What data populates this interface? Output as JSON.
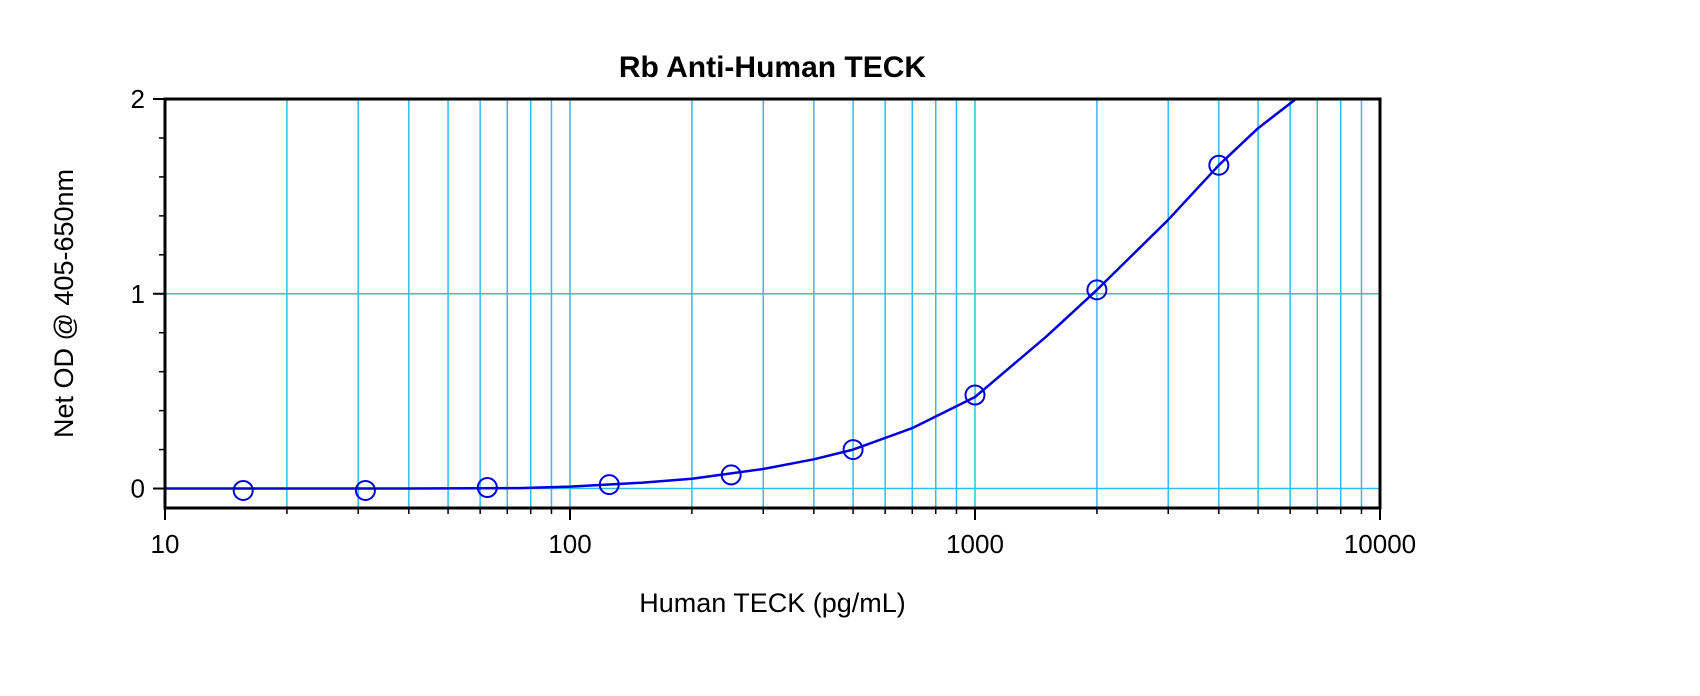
{
  "chart_data": {
    "type": "scatter",
    "title": "Rb Anti-Human TECK",
    "xlabel": "Human TECK (pg/mL)",
    "ylabel": "Net OD @ 405-650nm",
    "x_scale": "log",
    "xlim": [
      10,
      10000
    ],
    "ylim": [
      -0.1,
      2
    ],
    "grid": true,
    "x_ticks": [
      {
        "value": 10,
        "label": "10"
      },
      {
        "value": 100,
        "label": "100"
      },
      {
        "value": 1000,
        "label": "1000"
      },
      {
        "value": 10000,
        "label": "10000"
      }
    ],
    "y_ticks": [
      {
        "value": 0,
        "label": "0"
      },
      {
        "value": 1,
        "label": "1"
      },
      {
        "value": 2,
        "label": "2"
      }
    ],
    "y_minor_ticks": [
      0.2,
      0.4,
      0.6,
      0.8,
      1.2,
      1.4,
      1.6,
      1.8
    ],
    "series": [
      {
        "marker": "open-circle",
        "x": [
          15.6,
          31.25,
          62.5,
          125,
          250,
          500,
          1000,
          2000,
          4000
        ],
        "y": [
          -0.01,
          -0.01,
          0.005,
          0.02,
          0.07,
          0.2,
          0.48,
          1.02,
          1.66
        ]
      }
    ],
    "fit_curve": {
      "x": [
        10,
        40,
        75,
        100,
        150,
        200,
        300,
        400,
        500,
        700,
        1000,
        1500,
        2000,
        3000,
        4000,
        5000,
        6200
      ],
      "y": [
        0,
        0,
        0.002,
        0.01,
        0.03,
        0.05,
        0.1,
        0.15,
        0.2,
        0.31,
        0.47,
        0.78,
        1.02,
        1.38,
        1.66,
        1.85,
        2.0
      ]
    },
    "colors": {
      "series": "#0000dd",
      "grid": "#33bbee",
      "frame": "#000000"
    }
  }
}
